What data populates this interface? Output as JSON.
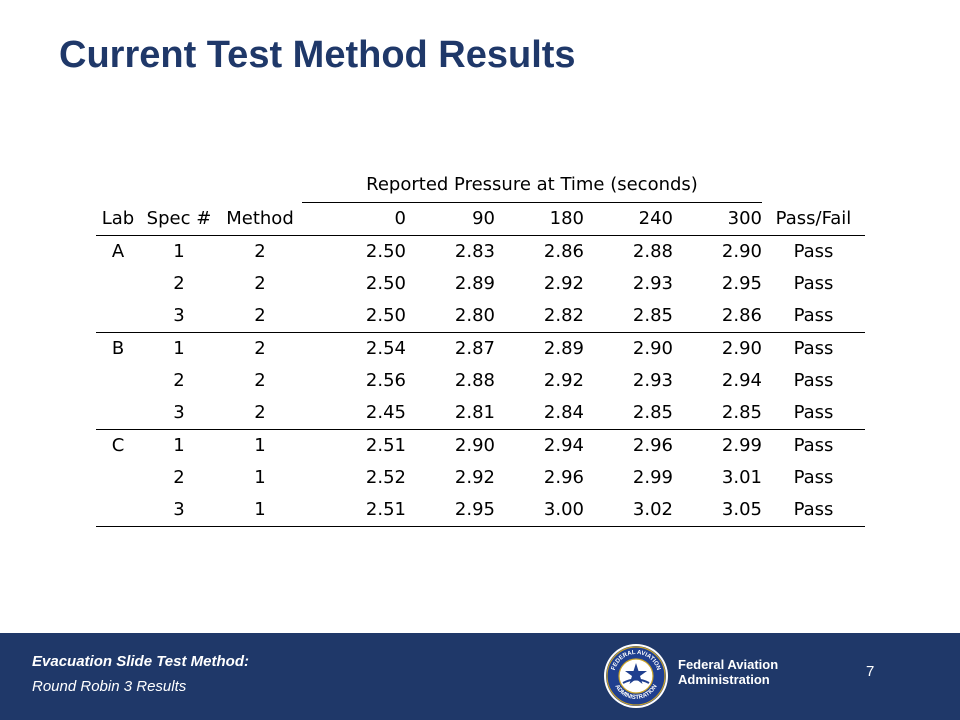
{
  "slide": {
    "title": "Current Test Method Results"
  },
  "table": {
    "group_header": "Reported Pressure at Time (seconds)",
    "columns": [
      "Lab",
      "Spec #",
      "Method",
      "0",
      "90",
      "180",
      "240",
      "300",
      "Pass/Fail"
    ],
    "rows": [
      [
        "A",
        "1",
        "2",
        "2.50",
        "2.83",
        "2.86",
        "2.88",
        "2.90",
        "Pass"
      ],
      [
        "",
        "2",
        "2",
        "2.50",
        "2.89",
        "2.92",
        "2.93",
        "2.95",
        "Pass"
      ],
      [
        "",
        "3",
        "2",
        "2.50",
        "2.80",
        "2.82",
        "2.85",
        "2.86",
        "Pass"
      ],
      [
        "B",
        "1",
        "2",
        "2.54",
        "2.87",
        "2.89",
        "2.90",
        "2.90",
        "Pass"
      ],
      [
        "",
        "2",
        "2",
        "2.56",
        "2.88",
        "2.92",
        "2.93",
        "2.94",
        "Pass"
      ],
      [
        "",
        "3",
        "2",
        "2.45",
        "2.81",
        "2.84",
        "2.85",
        "2.85",
        "Pass"
      ],
      [
        "C",
        "1",
        "1",
        "2.51",
        "2.90",
        "2.94",
        "2.96",
        "2.99",
        "Pass"
      ],
      [
        "",
        "2",
        "1",
        "2.52",
        "2.92",
        "2.96",
        "2.99",
        "3.01",
        "Pass"
      ],
      [
        "",
        "3",
        "1",
        "2.51",
        "2.95",
        "3.00",
        "3.02",
        "3.05",
        "Pass"
      ]
    ]
  },
  "footer": {
    "title": "Evacuation Slide Test Method:",
    "subtitle": "Round Robin 3 Results",
    "agency_line1": "Federal Aviation",
    "agency_line2": "Administration",
    "page_number": "7",
    "seal_text_top": "FEDERAL AVIATION",
    "seal_text_bottom": "ADMINISTRATION"
  },
  "colors": {
    "title": "#1f3869",
    "footer_bg": "#1f3869",
    "seal_blue": "#1f3f8f",
    "seal_gold": "#c9a227"
  },
  "icons": {
    "seal": "faa-seal-icon"
  }
}
